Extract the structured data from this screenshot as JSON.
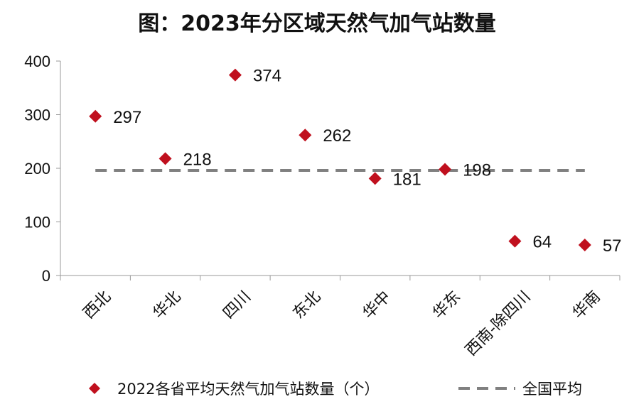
{
  "chart_data": {
    "type": "scatter",
    "title": "图：2023年分区域天然气加气站数量",
    "categories": [
      "西北",
      "华北",
      "四川",
      "东北",
      "华中",
      "华东",
      "西南-除四川",
      "华南"
    ],
    "series": [
      {
        "name": "2022各省平均天然气加气站数量（个）",
        "marker": "diamond",
        "color": "#C0101E",
        "values": [
          297,
          218,
          374,
          262,
          181,
          198,
          64,
          57
        ]
      },
      {
        "name": "全国平均",
        "style": "dashed-line",
        "color": "#808080",
        "value": 196
      }
    ],
    "ylim": [
      0,
      400
    ],
    "yticks": [
      0,
      100,
      200,
      300,
      400
    ],
    "grid": false,
    "legend_position": "bottom"
  }
}
